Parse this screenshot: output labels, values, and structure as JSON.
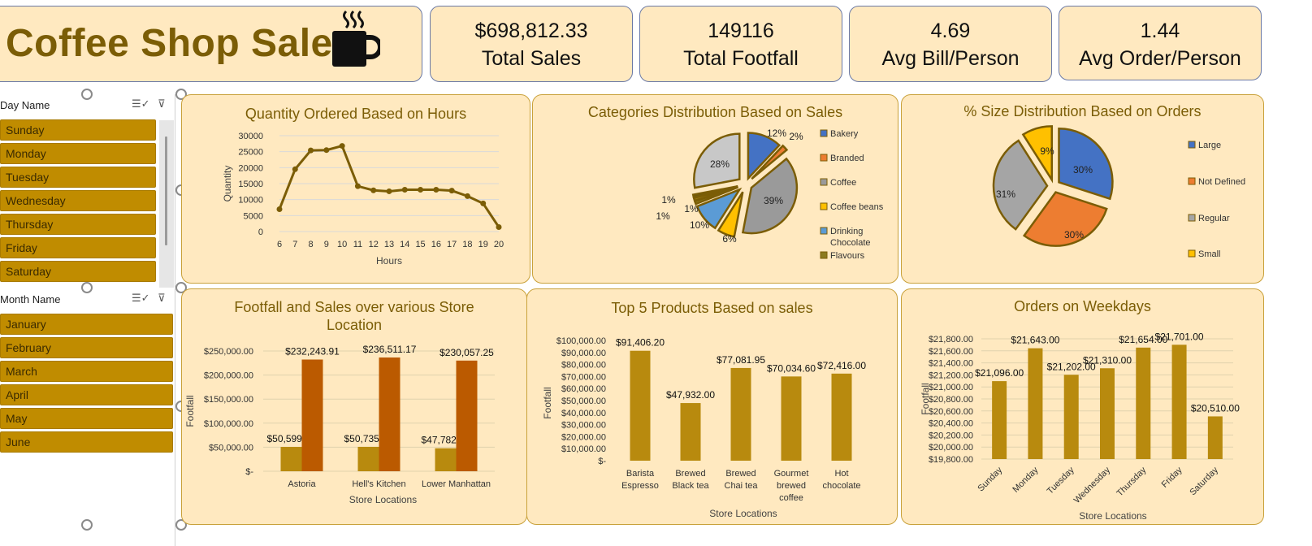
{
  "header": {
    "title": "Coffee Shop Sales",
    "kpis": [
      {
        "value": "$698,812.33",
        "label": "Total Sales"
      },
      {
        "value": "149116",
        "label": "Total Footfall"
      },
      {
        "value": "4.69",
        "label": "Avg Bill/Person"
      },
      {
        "value": "1.44",
        "label": "Avg Order/Person"
      }
    ],
    "icon": "coffee-mug-icon"
  },
  "slicers": {
    "day": {
      "label": "Day Name",
      "items": [
        "Sunday",
        "Monday",
        "Tuesday",
        "Wednesday",
        "Thursday",
        "Friday",
        "Saturday"
      ]
    },
    "month": {
      "label": "Month Name",
      "items": [
        "January",
        "February",
        "March",
        "April",
        "May",
        "June"
      ]
    }
  },
  "colors": {
    "gold": "#b88a0e",
    "dark_gold": "#7b5d06",
    "orange": "#bb5a00",
    "panel_bg": "#ffe9c0",
    "blue": "#4472c4",
    "pie_orange": "#ed7d31",
    "grey": "#a5a5a5",
    "yellow": "#ffc000"
  },
  "chart_data": [
    {
      "type": "line",
      "title": "Quantity Ordered Based on Hours",
      "xlabel": "Hours",
      "ylabel": "Quantity",
      "x": [
        6,
        7,
        8,
        9,
        10,
        11,
        12,
        13,
        14,
        15,
        16,
        17,
        18,
        19,
        20
      ],
      "values": [
        7000,
        19500,
        25400,
        25500,
        26800,
        14200,
        12900,
        12600,
        13100,
        13100,
        13100,
        12800,
        11100,
        8800,
        1400
      ],
      "ylim": [
        0,
        30000
      ],
      "yticks": [
        "30000",
        "25000",
        "20000",
        "15000",
        "10000",
        "5000",
        "0"
      ],
      "grid": true
    },
    {
      "type": "pie",
      "title": "Categories Distribution Based on Sales",
      "legend": [
        "Bakery",
        "Branded",
        "Coffee",
        "Coffee beans",
        "Drinking Chocolate",
        "Flavours"
      ],
      "slices": [
        {
          "label": "12%",
          "value": 12
        },
        {
          "label": "2%",
          "value": 2
        },
        {
          "label": "39%",
          "value": 39
        },
        {
          "label": "6%",
          "value": 6
        },
        {
          "label": "10%",
          "value": 10
        },
        {
          "label": "1%",
          "value": 1
        },
        {
          "label": "1%",
          "value": 1
        },
        {
          "label": "1%",
          "value": 1
        },
        {
          "label": "28%",
          "value": 28
        }
      ],
      "legend_position": "right"
    },
    {
      "type": "pie",
      "title": "% Size Distribution Based on Orders",
      "legend": [
        "Large",
        "Not Defined",
        "Regular",
        "Small"
      ],
      "slices": [
        {
          "label": "30%",
          "value": 30
        },
        {
          "label": "30%",
          "value": 30
        },
        {
          "label": "31%",
          "value": 31
        },
        {
          "label": "9%",
          "value": 9
        }
      ],
      "legend_position": "right"
    },
    {
      "type": "bar",
      "title": "Footfall and Sales over various Store Location",
      "xlabel": "Store Locations",
      "ylabel": "Footfall",
      "categories": [
        "Astoria",
        "Hell's Kitchen",
        "Lower Manhattan"
      ],
      "series": [
        {
          "values": [
            50599.0,
            50735.0,
            47782.0
          ],
          "labels": [
            "$50,599.00",
            "$50,735.00",
            "$47,782.00"
          ]
        },
        {
          "values": [
            232243.91,
            236511.17,
            230057.25
          ],
          "labels": [
            "$232,243.91",
            "$236,511.17",
            "$230,057.25"
          ]
        }
      ],
      "ylim": [
        0,
        250000
      ],
      "yticks": [
        "$250,000.00",
        "$200,000.00",
        "$150,000.00",
        "$100,000.00",
        "$50,000.00",
        "$-"
      ]
    },
    {
      "type": "bar",
      "title": "Top 5 Products Based on sales",
      "xlabel": "Store Locations",
      "ylabel": "Footfall",
      "categories": [
        [
          "Barista",
          "Espresso"
        ],
        [
          "Brewed",
          "Black tea"
        ],
        [
          "Brewed",
          "Chai tea"
        ],
        [
          "Gourmet",
          "brewed",
          "coffee"
        ],
        [
          "Hot",
          "chocolate"
        ]
      ],
      "values": [
        91406.2,
        47932.0,
        77081.95,
        70034.6,
        72416.0
      ],
      "labels": [
        "$91,406.20",
        "$47,932.00",
        "$77,081.95",
        "$70,034.60",
        "$72,416.00"
      ],
      "ylim": [
        0,
        100000
      ],
      "yticks": [
        "$100,000.00",
        "$90,000.00",
        "$80,000.00",
        "$70,000.00",
        "$60,000.00",
        "$50,000.00",
        "$40,000.00",
        "$30,000.00",
        "$20,000.00",
        "$10,000.00",
        "$-"
      ]
    },
    {
      "type": "bar",
      "title": "Orders on Weekdays",
      "xlabel": "Store Locations",
      "ylabel": "Footfall",
      "categories": [
        "Sunday",
        "Monday",
        "Tuesday",
        "Wednesday",
        "Thursday",
        "Friday",
        "Saturday"
      ],
      "values": [
        21096.0,
        21643.0,
        21202.0,
        21310.0,
        21654.0,
        21701.0,
        20510.0
      ],
      "labels": [
        "$21,096.00",
        "$21,643.00",
        "$21,202.00",
        "$21,310.00",
        "$21,654.00",
        "$21,701.00",
        "$20,510.00"
      ],
      "ylim": [
        19800,
        21800
      ],
      "yticks": [
        "$21,800.00",
        "$21,600.00",
        "$21,400.00",
        "$21,200.00",
        "$21,000.00",
        "$20,800.00",
        "$20,600.00",
        "$20,400.00",
        "$20,200.00",
        "$20,000.00",
        "$19,800.00"
      ]
    }
  ]
}
